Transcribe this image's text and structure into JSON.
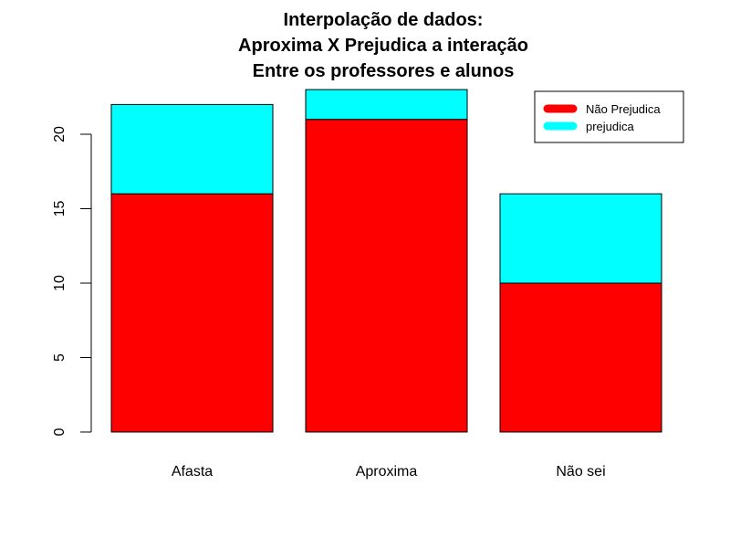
{
  "chart_data": {
    "type": "bar",
    "stacked": true,
    "title_lines": [
      "Interpolação de dados:",
      "Aproxima X Prejudica a interação",
      "Entre os professores e alunos"
    ],
    "xlabel": "",
    "ylabel": "",
    "categories": [
      "Afasta",
      "Aproxima",
      "Não sei"
    ],
    "series": [
      {
        "name": "Não Prejudica",
        "values": [
          16,
          21,
          10
        ],
        "color": "#ff0000"
      },
      {
        "name": "prejudica",
        "values": [
          6,
          2,
          6
        ],
        "color": "#00ffff"
      }
    ],
    "ylim": [
      0,
      23
    ],
    "yticks": [
      0,
      5,
      10,
      15,
      20
    ],
    "legend_position": "top-right",
    "grid": false
  }
}
